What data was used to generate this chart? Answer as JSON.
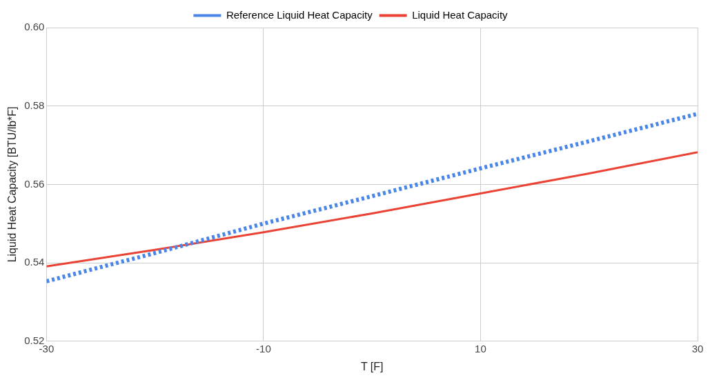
{
  "chart_data": {
    "type": "line",
    "xlabel": "T [F]",
    "ylabel": "Liquid Heat Capacity [BTU/lb*F]",
    "x": [
      -30,
      -20,
      -10,
      0,
      10,
      20,
      30
    ],
    "series": [
      {
        "name": "Reference Liquid Heat Capacity",
        "color": "#4a86e8",
        "line_style": "dotted",
        "values": [
          0.5353,
          0.5425,
          0.55,
          0.557,
          0.5641,
          0.571,
          0.578
        ]
      },
      {
        "name": "Liquid Heat Capacity",
        "color": "#ea4335",
        "line_style": "solid",
        "values": [
          0.5391,
          0.5433,
          0.5478,
          0.5526,
          0.5577,
          0.5628,
          0.5682
        ]
      }
    ],
    "xlim": [
      -30,
      30
    ],
    "xticks": [
      -30,
      -10,
      10,
      30
    ],
    "ylim": [
      0.52,
      0.6
    ],
    "yticks": [
      0.52,
      0.54,
      0.56,
      0.58,
      {
        "value": 0.6,
        "label": "0.60"
      }
    ],
    "grid": true,
    "legend": "top",
    "marker": "none"
  }
}
